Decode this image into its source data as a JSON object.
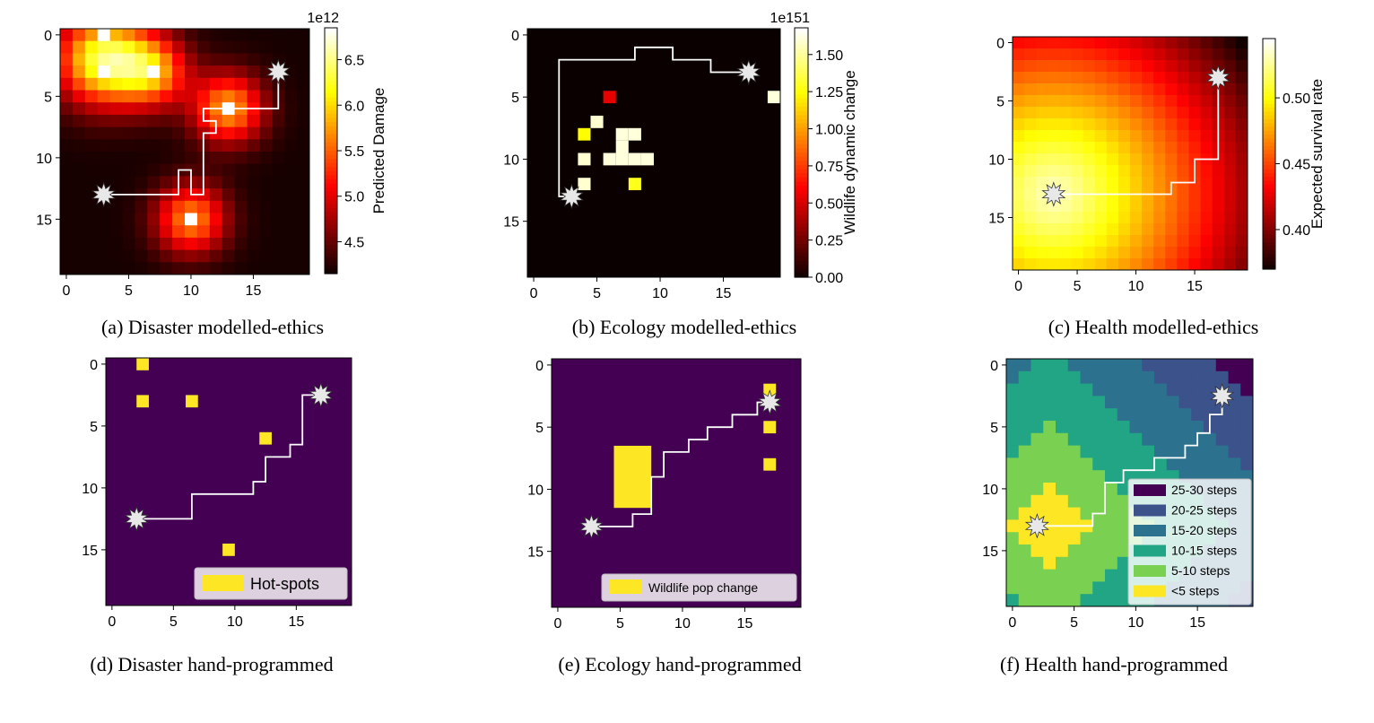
{
  "chart_data": [
    {
      "type": "heatmap",
      "id": "a",
      "caption": "(a) Disaster modelled-ethics",
      "grid_size": 20,
      "colormap": "hot",
      "colorbar": {
        "label": "Predicted Damage",
        "exponent": "1e12",
        "ticks": [
          "4.5",
          "5.0",
          "5.5",
          "6.0",
          "6.5"
        ],
        "tick_values": [
          4.5,
          5.0,
          5.5,
          6.0,
          6.5
        ],
        "range": [
          4.15,
          6.85
        ]
      },
      "xticks": [
        "0",
        "5",
        "10",
        "15"
      ],
      "yticks": [
        "0",
        "5",
        "10",
        "15"
      ],
      "peaks": [
        {
          "x": 3,
          "y": 2,
          "amp": 2.2,
          "sigma": 2.6
        },
        {
          "x": 7,
          "y": 3,
          "amp": 1.4,
          "sigma": 2.0
        },
        {
          "x": 13,
          "y": 6,
          "amp": 1.6,
          "sigma": 2.0
        },
        {
          "x": 10,
          "y": 15,
          "amp": 1.5,
          "sigma": 2.0
        }
      ],
      "base": 4.2,
      "bright_cells": [
        [
          3,
          0
        ],
        [
          3,
          3
        ],
        [
          7,
          3
        ],
        [
          13,
          6
        ],
        [
          10,
          15
        ]
      ],
      "path": [
        [
          3.5,
          13.5
        ],
        [
          9.5,
          13.5
        ],
        [
          9.5,
          11.5
        ],
        [
          10.5,
          11.5
        ],
        [
          10.5,
          13.5
        ],
        [
          11.5,
          13.5
        ],
        [
          11.5,
          8.5
        ],
        [
          12.5,
          8.5
        ],
        [
          12.5,
          7.5
        ],
        [
          11.5,
          7.5
        ],
        [
          11.5,
          6.5
        ],
        [
          17.5,
          6.5
        ],
        [
          17.5,
          3.5
        ]
      ],
      "start": [
        3.5,
        13.5
      ],
      "goal": [
        17.5,
        3.5
      ]
    },
    {
      "type": "heatmap",
      "id": "b",
      "caption": "(b) Ecology modelled-ethics",
      "grid_size": 20,
      "colormap": "hot",
      "colorbar": {
        "label": "Wildlife dynamic change",
        "exponent": "1e151",
        "ticks": [
          "0.00",
          "0.25",
          "0.50",
          "0.75",
          "1.00",
          "1.25",
          "1.50"
        ],
        "tick_values": [
          0,
          0.25,
          0.5,
          0.75,
          1.0,
          1.25,
          1.5
        ],
        "range": [
          0,
          1.68
        ]
      },
      "xticks": [
        "0",
        "5",
        "10",
        "15"
      ],
      "yticks": [
        "0",
        "5",
        "10",
        "15"
      ],
      "cells": [
        [
          6,
          5,
          0.55
        ],
        [
          19,
          5,
          1.62
        ],
        [
          5,
          7,
          1.6
        ],
        [
          4,
          8,
          1.25
        ],
        [
          7,
          8,
          1.62
        ],
        [
          8,
          8,
          1.62
        ],
        [
          7,
          9,
          1.62
        ],
        [
          4,
          10,
          1.6
        ],
        [
          6,
          10,
          1.62
        ],
        [
          7,
          10,
          1.62
        ],
        [
          8,
          10,
          1.62
        ],
        [
          9,
          10,
          1.62
        ],
        [
          4,
          12,
          1.6
        ],
        [
          8,
          12,
          1.3
        ]
      ],
      "path": [
        [
          3.5,
          13.5
        ],
        [
          2.5,
          13.5
        ],
        [
          2.5,
          2.5
        ],
        [
          8.5,
          2.5
        ],
        [
          8.5,
          1.5
        ],
        [
          11.5,
          1.5
        ],
        [
          11.5,
          2.5
        ],
        [
          14.5,
          2.5
        ],
        [
          14.5,
          3.5
        ],
        [
          17.5,
          3.5
        ]
      ],
      "start": [
        3.5,
        13.5
      ],
      "goal": [
        17.5,
        3.5
      ]
    },
    {
      "type": "heatmap",
      "id": "c",
      "caption": "(c) Health modelled-ethics",
      "grid_size": 20,
      "colormap": "hot",
      "colorbar": {
        "label": "Expected survival rate",
        "exponent": "",
        "ticks": [
          "0.40",
          "0.45",
          "0.50"
        ],
        "tick_values": [
          0.4,
          0.45,
          0.5
        ],
        "range": [
          0.37,
          0.545
        ]
      },
      "xticks": [
        "0",
        "5",
        "10",
        "15"
      ],
      "yticks": [
        "0",
        "5",
        "10",
        "15"
      ],
      "center": [
        3.5,
        13.5
      ],
      "max_value": 0.535,
      "min_value": 0.372,
      "path": [
        [
          3.5,
          13.5
        ],
        [
          13.5,
          13.5
        ],
        [
          13.5,
          12.5
        ],
        [
          15.5,
          12.5
        ],
        [
          15.5,
          10.5
        ],
        [
          17.5,
          10.5
        ],
        [
          17.5,
          3.5
        ]
      ],
      "start": [
        3.5,
        13.5
      ],
      "goal": [
        17.5,
        3.5
      ]
    },
    {
      "type": "heatmap",
      "id": "d",
      "caption": "(d) Disaster hand-programmed",
      "grid_size": 20,
      "background": "#440154",
      "xticks": [
        "0",
        "5",
        "10",
        "15"
      ],
      "yticks": [
        "0",
        "5",
        "10",
        "15"
      ],
      "hotspots": [
        [
          3,
          0
        ],
        [
          3,
          3
        ],
        [
          7,
          3
        ],
        [
          13,
          6
        ],
        [
          10,
          15
        ]
      ],
      "legend": [
        {
          "label": "Hot-spots",
          "color": "#fde725"
        }
      ],
      "path": [
        [
          2.5,
          13
        ],
        [
          7,
          13
        ],
        [
          7,
          11
        ],
        [
          12,
          11
        ],
        [
          12,
          10
        ],
        [
          13,
          10
        ],
        [
          13,
          8
        ],
        [
          15,
          8
        ],
        [
          15,
          7
        ],
        [
          16,
          7
        ],
        [
          16,
          3
        ],
        [
          17.5,
          3
        ]
      ],
      "start": [
        2.5,
        13
      ],
      "goal": [
        17.5,
        3
      ]
    },
    {
      "type": "heatmap",
      "id": "e",
      "caption": "(e) Ecology hand-programmed",
      "grid_size": 20,
      "background": "#440154",
      "xticks": [
        "0",
        "5",
        "10",
        "15"
      ],
      "yticks": [
        "0",
        "5",
        "10",
        "15"
      ],
      "rects": [
        [
          5,
          7,
          3,
          5
        ]
      ],
      "cells": [
        [
          17.5,
          2.5
        ],
        [
          17.5,
          5.5
        ],
        [
          17.5,
          8.5
        ]
      ],
      "legend": [
        {
          "label": "Wildlife pop change",
          "color": "#fde725"
        }
      ],
      "path": [
        [
          3.2,
          13.5
        ],
        [
          6.5,
          13.5
        ],
        [
          6.5,
          12.5
        ],
        [
          8,
          12.5
        ],
        [
          8,
          9.5
        ],
        [
          9,
          9.5
        ],
        [
          9,
          7.5
        ],
        [
          11,
          7.5
        ],
        [
          11,
          6.5
        ],
        [
          12.5,
          6.5
        ],
        [
          12.5,
          5.5
        ],
        [
          14.5,
          5.5
        ],
        [
          14.5,
          4.5
        ],
        [
          16.5,
          4.5
        ],
        [
          16.5,
          3.5
        ],
        [
          17.5,
          3.5
        ]
      ],
      "start": [
        3.2,
        13.5
      ],
      "goal": [
        17.5,
        3.5
      ]
    },
    {
      "type": "heatmap",
      "id": "f",
      "caption": "(f) Health hand-programmed",
      "grid_size": 20,
      "center": [
        3,
        13
      ],
      "xticks": [
        "0",
        "5",
        "10",
        "15"
      ],
      "yticks": [
        "0",
        "5",
        "10",
        "15"
      ],
      "legend": [
        {
          "label": "25-30 steps",
          "color": "#440154"
        },
        {
          "label": "20-25 steps",
          "color": "#3b528b"
        },
        {
          "label": "15-20 steps",
          "color": "#2c728e"
        },
        {
          "label": "10-15 steps",
          "color": "#21a585"
        },
        {
          "label": "5-10 steps",
          "color": "#7ad151"
        },
        {
          "label": "<5 steps",
          "color": "#fde725"
        }
      ],
      "path": [
        [
          2.5,
          13.5
        ],
        [
          7,
          13.5
        ],
        [
          7,
          12.5
        ],
        [
          8,
          12.5
        ],
        [
          8,
          10
        ],
        [
          9.5,
          10
        ],
        [
          9.5,
          9
        ],
        [
          12,
          9
        ],
        [
          12,
          8
        ],
        [
          14.5,
          8
        ],
        [
          14.5,
          7
        ],
        [
          15.5,
          7
        ],
        [
          15.5,
          6
        ],
        [
          16.5,
          6
        ],
        [
          16.5,
          4.5
        ],
        [
          17.5,
          4.5
        ],
        [
          17.5,
          3
        ]
      ],
      "start": [
        2.5,
        13.5
      ],
      "goal": [
        17.5,
        3
      ]
    }
  ]
}
